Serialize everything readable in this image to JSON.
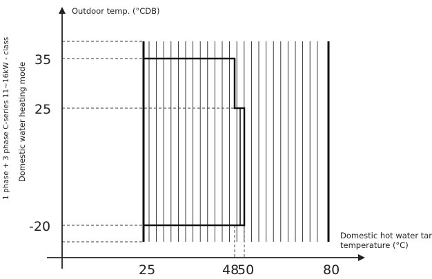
{
  "diagram": {
    "y_axis_title": "Outdoor temp. (°CDB)",
    "side_label_1": "1 phase + 3 phase C-series 11~16kW - class",
    "side_label_2": "Domestic water heating mode",
    "x_axis_title_1": "Domestic hot water tank",
    "x_axis_title_2": "temperature (°C)",
    "y_ticks": [
      "35",
      "25",
      "-20"
    ],
    "x_ticks": [
      "25",
      "48",
      "50",
      "80"
    ]
  },
  "chart_data": {
    "type": "area",
    "xlabel": "Domestic hot water tank temperature (°C)",
    "ylabel": "Outdoor temp. (°CDB)",
    "operating_envelope": [
      {
        "x": 25,
        "y": 35
      },
      {
        "x": 48,
        "y": 35
      },
      {
        "x": 48,
        "y": 25
      },
      {
        "x": 50,
        "y": 25
      },
      {
        "x": 50,
        "y": -20
      },
      {
        "x": 25,
        "y": -20
      }
    ],
    "hatched_range_x": [
      25,
      80
    ],
    "x_ticks": [
      25,
      48,
      50,
      80
    ],
    "y_ticks": [
      35,
      25,
      -20
    ]
  }
}
